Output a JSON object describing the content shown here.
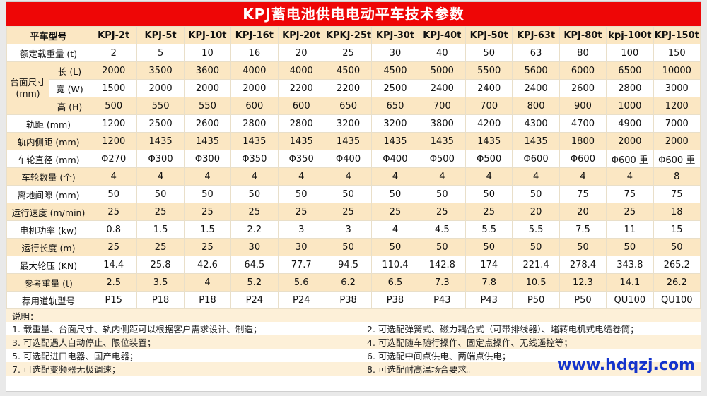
{
  "page": {
    "title": "KPJ蓄电池供电电动平车技术参数",
    "website": "www.hdqzj.com"
  },
  "colors": {
    "header_bg": "#ee0606",
    "row_cream": "#fbe7c3",
    "notes_cream": "#fdf0d8",
    "link_blue": "#1433cc"
  },
  "table": {
    "corner_label": "平车型号",
    "models": [
      "KPJ-2t",
      "KPJ-5t",
      "KPJ-10t",
      "KPJ-16t",
      "KPJ-20t",
      "KPKJ-25t",
      "KPJ-30t",
      "KPJ-40t",
      "KPJ-50t",
      "KPJ-63t",
      "KPJ-80t",
      "kpj-100t",
      "KPJ-150t"
    ],
    "rows": [
      {
        "label": "额定载重量 (t)",
        "shade": "white",
        "values": [
          "2",
          "5",
          "10",
          "16",
          "20",
          "25",
          "30",
          "40",
          "50",
          "63",
          "80",
          "100",
          "150"
        ]
      },
      {
        "group": "台面尺寸 (mm)",
        "group_rowspan": 3,
        "sublabel": "长 (L)",
        "shade": "cream",
        "values": [
          "2000",
          "3500",
          "3600",
          "4000",
          "4000",
          "4500",
          "4500",
          "5000",
          "5500",
          "5600",
          "6000",
          "6500",
          "10000"
        ]
      },
      {
        "sublabel": "宽 (W)",
        "shade": "white",
        "values": [
          "1500",
          "2000",
          "2000",
          "2000",
          "2200",
          "2200",
          "2500",
          "2400",
          "2400",
          "2400",
          "2600",
          "2800",
          "3000"
        ]
      },
      {
        "sublabel": "高 (H)",
        "shade": "cream",
        "values": [
          "500",
          "550",
          "550",
          "600",
          "600",
          "650",
          "650",
          "700",
          "700",
          "800",
          "900",
          "1000",
          "1200"
        ]
      },
      {
        "label": "轨距 (mm)",
        "shade": "white",
        "values": [
          "1200",
          "2500",
          "2600",
          "2800",
          "2800",
          "3200",
          "3200",
          "3800",
          "4200",
          "4300",
          "4700",
          "4900",
          "7000"
        ]
      },
      {
        "label": "轨内侧距 (mm)",
        "shade": "cream",
        "values": [
          "1200",
          "1435",
          "1435",
          "1435",
          "1435",
          "1435",
          "1435",
          "1435",
          "1435",
          "1435",
          "1800",
          "2000",
          "2000"
        ]
      },
      {
        "label": "车轮直径 (mm)",
        "shade": "white",
        "values": [
          "Φ270",
          "Φ300",
          "Φ300",
          "Φ350",
          "Φ350",
          "Φ400",
          "Φ400",
          "Φ500",
          "Φ500",
          "Φ600",
          "Φ600",
          "Φ600 重",
          "Φ600 重"
        ]
      },
      {
        "label": "车轮数量 (个)",
        "shade": "cream",
        "values": [
          "4",
          "4",
          "4",
          "4",
          "4",
          "4",
          "4",
          "4",
          "4",
          "4",
          "4",
          "4",
          "8"
        ]
      },
      {
        "label": "离地间隙 (mm)",
        "shade": "white",
        "values": [
          "50",
          "50",
          "50",
          "50",
          "50",
          "50",
          "50",
          "50",
          "50",
          "50",
          "75",
          "75",
          "75"
        ]
      },
      {
        "label": "运行速度 (m/min)",
        "shade": "cream",
        "values": [
          "25",
          "25",
          "25",
          "25",
          "25",
          "25",
          "25",
          "25",
          "25",
          "20",
          "20",
          "25",
          "18"
        ]
      },
      {
        "label": "电机功率 (kw)",
        "shade": "white",
        "values": [
          "0.8",
          "1.5",
          "1.5",
          "2.2",
          "3",
          "3",
          "4",
          "4.5",
          "5.5",
          "5.5",
          "7.5",
          "11",
          "15"
        ]
      },
      {
        "label": "运行长度 (m)",
        "shade": "cream",
        "values": [
          "25",
          "25",
          "25",
          "30",
          "30",
          "50",
          "50",
          "50",
          "50",
          "50",
          "50",
          "50",
          "50"
        ]
      },
      {
        "label": "最大轮压 (KN)",
        "shade": "white",
        "values": [
          "14.4",
          "25.8",
          "42.6",
          "64.5",
          "77.7",
          "94.5",
          "110.4",
          "142.8",
          "174",
          "221.4",
          "278.4",
          "343.8",
          "265.2"
        ]
      },
      {
        "label": "参考重量 (t)",
        "shade": "cream",
        "values": [
          "2.5",
          "3.5",
          "4",
          "5.2",
          "5.6",
          "6.2",
          "6.5",
          "7.3",
          "7.8",
          "10.5",
          "12.3",
          "14.1",
          "26.2"
        ]
      },
      {
        "label": "荐用道轨型号",
        "shade": "white",
        "values": [
          "P15",
          "P18",
          "P18",
          "P24",
          "P24",
          "P38",
          "P38",
          "P43",
          "P43",
          "P50",
          "P50",
          "QU100",
          "QU100"
        ]
      }
    ]
  },
  "notes": {
    "heading": "说明：",
    "left": [
      "1. 载重量、台面尺寸、轨内侧距可以根据客户需求设计、制造；",
      "3. 可选配遇人自动停止、限位装置；",
      "5. 可选配进口电器、国产电器；",
      "7. 可选配变频器无极调速；"
    ],
    "right": [
      "2. 可选配弹簧式、磁力耦合式（可带排线器）、堵转电机式电缆卷筒；",
      "4. 可选配随车随行操作、固定点操作、无线遥控等；",
      "6. 可选配中间点供电、两端点供电；",
      "8. 可选配耐高温场合要求。"
    ]
  }
}
